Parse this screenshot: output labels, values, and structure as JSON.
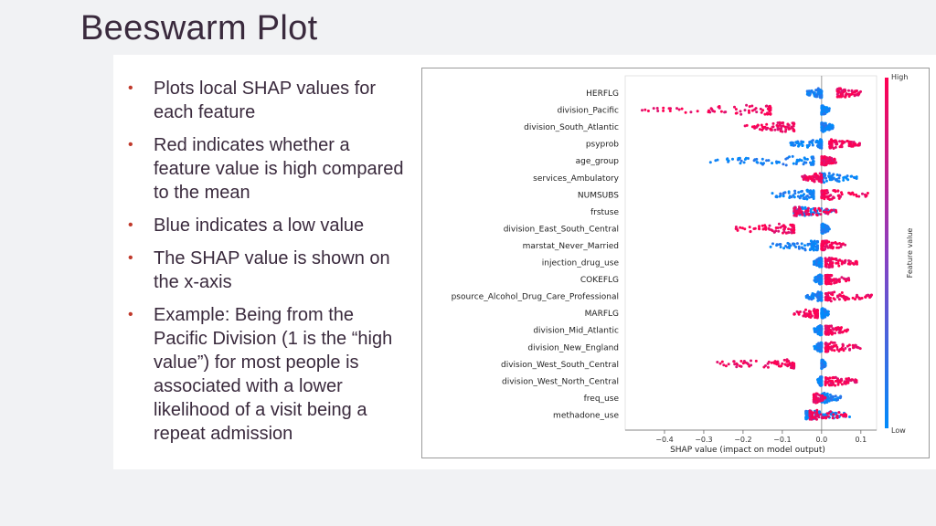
{
  "slide": {
    "title": "Beeswarm Plot",
    "bullets": [
      "Plots local SHAP values for each feature",
      "Red indicates whether a feature value is high compared to the mean",
      "Blue indicates a low value",
      "The SHAP value is shown on the x-axis",
      "Example: Being from the Pacific Division (1 is the “high value”) for most people is associated with a lower likelihood of a visit being a repeat admission"
    ]
  },
  "colors": {
    "high": "#ff0052",
    "low": "#008bfb",
    "accent_bullet": "#c0392b"
  },
  "chart_data": {
    "type": "scatter",
    "subtype": "shap-beeswarm",
    "xlabel": "SHAP value (impact on model output)",
    "xlim": [
      -0.5,
      0.14
    ],
    "xticks": [
      -0.4,
      -0.3,
      -0.2,
      -0.1,
      0.0,
      0.1
    ],
    "xtick_labels": [
      "−0.4",
      "−0.3",
      "−0.2",
      "−0.1",
      "0.0",
      "0.1"
    ],
    "colorbar": {
      "label": "Feature value",
      "high": "High",
      "low": "Low"
    },
    "features": [
      {
        "name": "HERFLG",
        "low_range": [
          -0.04,
          0.0
        ],
        "high_range": [
          0.04,
          0.1
        ]
      },
      {
        "name": "division_Pacific",
        "low_range": [
          0.0,
          0.02
        ],
        "high_range": [
          -0.46,
          -0.13
        ]
      },
      {
        "name": "division_South_Atlantic",
        "low_range": [
          0.0,
          0.03
        ],
        "high_range": [
          -0.2,
          -0.07
        ]
      },
      {
        "name": "psyprob",
        "low_range": [
          -0.08,
          0.0
        ],
        "high_range": [
          0.02,
          0.1
        ]
      },
      {
        "name": "age_group",
        "low_range": [
          -0.29,
          -0.02
        ],
        "high_range": [
          0.0,
          0.04
        ]
      },
      {
        "name": "services_Ambulatory",
        "low_range": [
          0.0,
          0.09
        ],
        "high_range": [
          -0.05,
          0.0
        ]
      },
      {
        "name": "NUMSUBS",
        "low_range": [
          -0.13,
          -0.02
        ],
        "high_range": [
          0.0,
          0.12
        ]
      },
      {
        "name": "frstuse",
        "low_range": [
          -0.07,
          0.04
        ],
        "high_range": [
          -0.07,
          0.04
        ]
      },
      {
        "name": "division_East_South_Central",
        "low_range": [
          0.0,
          0.02
        ],
        "high_range": [
          -0.24,
          -0.07
        ]
      },
      {
        "name": "marstat_Never_Married",
        "low_range": [
          -0.13,
          -0.01
        ],
        "high_range": [
          0.0,
          0.06
        ]
      },
      {
        "name": "injection_drug_use",
        "low_range": [
          -0.02,
          0.0
        ],
        "high_range": [
          0.01,
          0.09
        ]
      },
      {
        "name": "COKEFLG",
        "low_range": [
          -0.02,
          0.0
        ],
        "high_range": [
          0.01,
          0.07
        ]
      },
      {
        "name": "psource_Alcohol_Drug_Care_Professional",
        "low_range": [
          -0.04,
          0.0
        ],
        "high_range": [
          0.01,
          0.13
        ]
      },
      {
        "name": "MARFLG",
        "low_range": [
          0.0,
          0.02
        ],
        "high_range": [
          -0.07,
          -0.01
        ]
      },
      {
        "name": "division_Mid_Atlantic",
        "low_range": [
          -0.02,
          0.0
        ],
        "high_range": [
          0.01,
          0.07
        ]
      },
      {
        "name": "division_New_England",
        "low_range": [
          -0.02,
          0.0
        ],
        "high_range": [
          0.01,
          0.1
        ]
      },
      {
        "name": "division_West_South_Central",
        "low_range": [
          0.0,
          0.01
        ],
        "high_range": [
          -0.3,
          -0.07
        ]
      },
      {
        "name": "division_West_North_Central",
        "low_range": [
          -0.01,
          0.0
        ],
        "high_range": [
          0.01,
          0.09
        ]
      },
      {
        "name": "freq_use",
        "low_range": [
          0.0,
          0.05
        ],
        "high_range": [
          -0.02,
          0.01
        ]
      },
      {
        "name": "methadone_use",
        "low_range": [
          -0.04,
          0.08
        ],
        "high_range": [
          -0.03,
          0.08
        ]
      }
    ]
  }
}
